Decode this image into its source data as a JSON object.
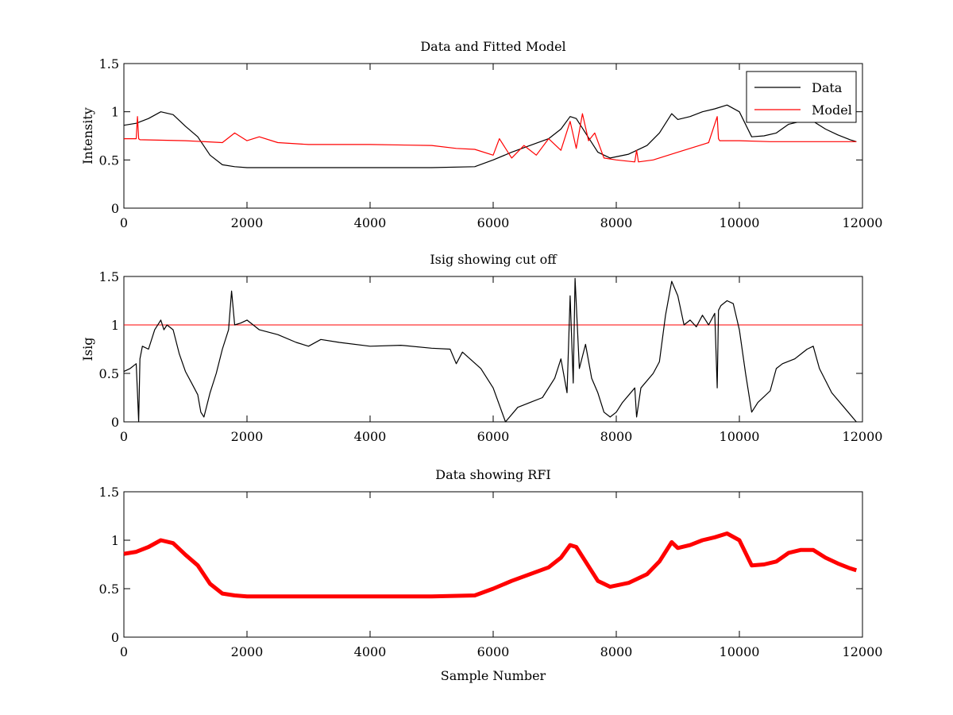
{
  "chart_data": [
    {
      "type": "line",
      "title": "Data and Fitted Model",
      "xlabel": "",
      "ylabel": "Intensity",
      "xlim": [
        0,
        12000
      ],
      "ylim": [
        0,
        1.5
      ],
      "xticks": [
        0,
        2000,
        4000,
        6000,
        8000,
        10000,
        12000
      ],
      "yticks": [
        0,
        0.5,
        1,
        1.5
      ],
      "grid": false,
      "legend": "top-right",
      "series": [
        {
          "name": "Data",
          "color": "#000000",
          "x": [
            0,
            200,
            400,
            600,
            800,
            1000,
            1200,
            1400,
            1600,
            1800,
            2000,
            3000,
            4000,
            5000,
            5700,
            6000,
            6300,
            6600,
            6900,
            7100,
            7250,
            7350,
            7500,
            7700,
            7900,
            8200,
            8500,
            8700,
            8900,
            9000,
            9200,
            9400,
            9600,
            9800,
            10000,
            10200,
            10400,
            10600,
            10800,
            11000,
            11200,
            11400,
            11600,
            11800,
            11900
          ],
          "y": [
            0.86,
            0.88,
            0.93,
            1.0,
            0.97,
            0.85,
            0.74,
            0.55,
            0.45,
            0.43,
            0.42,
            0.42,
            0.42,
            0.42,
            0.43,
            0.5,
            0.58,
            0.65,
            0.72,
            0.82,
            0.95,
            0.93,
            0.78,
            0.58,
            0.52,
            0.56,
            0.65,
            0.78,
            0.98,
            0.92,
            0.95,
            1.0,
            1.03,
            1.07,
            1.0,
            0.74,
            0.75,
            0.78,
            0.87,
            0.9,
            0.9,
            0.82,
            0.76,
            0.71,
            0.69
          ]
        },
        {
          "name": "Model",
          "color": "#ff0000",
          "x": [
            0,
            200,
            220,
            240,
            260,
            1000,
            1600,
            1800,
            2000,
            2200,
            2500,
            3000,
            4000,
            5000,
            5400,
            5700,
            6000,
            6100,
            6300,
            6500,
            6700,
            6900,
            7100,
            7250,
            7350,
            7450,
            7550,
            7650,
            7800,
            8000,
            8300,
            8330,
            8360,
            8600,
            9000,
            9500,
            9640,
            9660,
            9680,
            10000,
            10500,
            11000,
            11500,
            11900
          ],
          "y": [
            0.72,
            0.72,
            0.95,
            0.72,
            0.71,
            0.7,
            0.68,
            0.78,
            0.7,
            0.74,
            0.68,
            0.66,
            0.66,
            0.65,
            0.62,
            0.61,
            0.55,
            0.72,
            0.52,
            0.65,
            0.55,
            0.72,
            0.6,
            0.9,
            0.62,
            0.98,
            0.7,
            0.78,
            0.52,
            0.5,
            0.48,
            0.6,
            0.48,
            0.5,
            0.58,
            0.68,
            0.95,
            0.72,
            0.7,
            0.7,
            0.69,
            0.69,
            0.69,
            0.69
          ]
        }
      ]
    },
    {
      "type": "line",
      "title": "Isig showing cut off",
      "xlabel": "",
      "ylabel": "Isig",
      "xlim": [
        0,
        12000
      ],
      "ylim": [
        0,
        1.5
      ],
      "xticks": [
        0,
        2000,
        4000,
        6000,
        8000,
        10000,
        12000
      ],
      "yticks": [
        0,
        0.5,
        1,
        1.5
      ],
      "grid": false,
      "threshold": {
        "value": 1,
        "color": "#ff0000"
      },
      "series": [
        {
          "color": "#000000",
          "x": [
            0,
            100,
            200,
            220,
            240,
            260,
            300,
            400,
            500,
            600,
            650,
            700,
            800,
            900,
            1000,
            1100,
            1200,
            1250,
            1300,
            1400,
            1500,
            1600,
            1700,
            1750,
            1800,
            1900,
            2000,
            2100,
            2200,
            2500,
            2800,
            3000,
            3200,
            3500,
            4000,
            4500,
            5000,
            5300,
            5400,
            5500,
            5800,
            6000,
            6200,
            6400,
            6600,
            6800,
            7000,
            7100,
            7200,
            7250,
            7300,
            7330,
            7400,
            7500,
            7600,
            7700,
            7800,
            7900,
            8000,
            8100,
            8300,
            8330,
            8400,
            8600,
            8700,
            8800,
            8900,
            9000,
            9100,
            9200,
            9300,
            9400,
            9500,
            9600,
            9640,
            9660,
            9700,
            9800,
            9900,
            10000,
            10100,
            10200,
            10300,
            10500,
            10600,
            10700,
            10900,
            11000,
            11100,
            11200,
            11300,
            11500,
            11700,
            11900
          ],
          "y": [
            0.52,
            0.55,
            0.6,
            0.3,
            0.0,
            0.65,
            0.78,
            0.75,
            0.95,
            1.05,
            0.95,
            1.0,
            0.95,
            0.7,
            0.52,
            0.4,
            0.28,
            0.1,
            0.05,
            0.3,
            0.5,
            0.75,
            0.95,
            1.35,
            1.0,
            1.02,
            1.05,
            1.0,
            0.95,
            0.9,
            0.82,
            0.78,
            0.85,
            0.82,
            0.78,
            0.79,
            0.76,
            0.75,
            0.6,
            0.72,
            0.55,
            0.35,
            0.0,
            0.15,
            0.2,
            0.25,
            0.45,
            0.65,
            0.3,
            1.3,
            0.4,
            1.48,
            0.55,
            0.8,
            0.45,
            0.3,
            0.1,
            0.05,
            0.1,
            0.2,
            0.35,
            0.05,
            0.35,
            0.5,
            0.62,
            1.1,
            1.45,
            1.3,
            1.0,
            1.05,
            0.98,
            1.1,
            1.0,
            1.12,
            0.35,
            1.15,
            1.2,
            1.25,
            1.22,
            0.95,
            0.5,
            0.1,
            0.2,
            0.32,
            0.55,
            0.6,
            0.65,
            0.7,
            0.75,
            0.78,
            0.55,
            0.3,
            0.15,
            0.0
          ]
        }
      ]
    },
    {
      "type": "line",
      "title": "Data showing RFI",
      "xlabel": "Sample Number",
      "ylabel": "",
      "xlim": [
        0,
        12000
      ],
      "ylim": [
        0,
        1.5
      ],
      "xticks": [
        0,
        2000,
        4000,
        6000,
        8000,
        10000,
        12000
      ],
      "yticks": [
        0,
        0.5,
        1,
        1.5
      ],
      "grid": false,
      "series": [
        {
          "color": "#ff0000",
          "x": [
            0,
            200,
            400,
            600,
            800,
            1000,
            1200,
            1400,
            1600,
            1800,
            2000,
            3000,
            4000,
            5000,
            5700,
            6000,
            6300,
            6600,
            6900,
            7100,
            7250,
            7350,
            7500,
            7700,
            7900,
            8200,
            8500,
            8700,
            8900,
            9000,
            9200,
            9400,
            9600,
            9800,
            10000,
            10200,
            10400,
            10600,
            10800,
            11000,
            11200,
            11400,
            11600,
            11800,
            11900
          ],
          "y": [
            0.86,
            0.88,
            0.93,
            1.0,
            0.97,
            0.85,
            0.74,
            0.55,
            0.45,
            0.43,
            0.42,
            0.42,
            0.42,
            0.42,
            0.43,
            0.5,
            0.58,
            0.65,
            0.72,
            0.82,
            0.95,
            0.93,
            0.78,
            0.58,
            0.52,
            0.56,
            0.65,
            0.78,
            0.98,
            0.92,
            0.95,
            1.0,
            1.03,
            1.07,
            1.0,
            0.74,
            0.75,
            0.78,
            0.87,
            0.9,
            0.9,
            0.82,
            0.76,
            0.71,
            0.69
          ]
        }
      ]
    }
  ]
}
